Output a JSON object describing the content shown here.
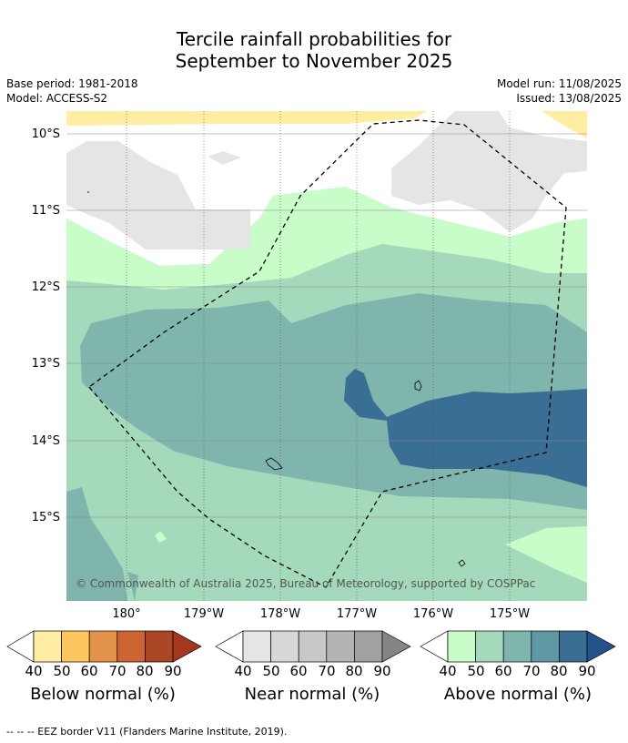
{
  "title_line1": "Tercile rainfall probabilities for",
  "title_line2": "September to November 2025",
  "base_period": "Base period: 1981-2018",
  "model": "Model: ACCESS-S2",
  "model_run": "Model run: 11/08/2025",
  "issued": "Issued: 13/08/2025",
  "map": {
    "lat_labels": [
      "10°S",
      "11°S",
      "12°S",
      "13°S",
      "14°S",
      "15°S"
    ],
    "lon_labels": [
      "180°",
      "179°W",
      "178°W",
      "177°W",
      "176°W",
      "175°W"
    ],
    "copyright": "© Commonwealth of Australia 2025, Bureau of Meteorology, supported by COSPPac"
  },
  "legends": [
    {
      "label": "Below normal (%)",
      "ticks": [
        "40",
        "50",
        "60",
        "70",
        "80",
        "90"
      ],
      "colors": [
        "#ffeea1",
        "#fec661",
        "#e3924a",
        "#cf6433",
        "#ac4725",
        "#a3381f"
      ]
    },
    {
      "label": "Near normal (%)",
      "ticks": [
        "40",
        "50",
        "60",
        "70",
        "80",
        "90"
      ],
      "colors": [
        "#e5e5e5",
        "#d7d7d7",
        "#c8c8c8",
        "#b4b4b4",
        "#a1a1a1",
        "#858585"
      ]
    },
    {
      "label": "Above normal (%)",
      "ticks": [
        "40",
        "50",
        "60",
        "70",
        "80",
        "90"
      ],
      "colors": [
        "#c8fcc8",
        "#a5d9bb",
        "#80b5ad",
        "#5f97a2",
        "#3b6e95",
        "#24528a"
      ]
    }
  ],
  "footer": "--  --  -- EEZ border V11 (Flanders Marine Institute, 2019)."
}
